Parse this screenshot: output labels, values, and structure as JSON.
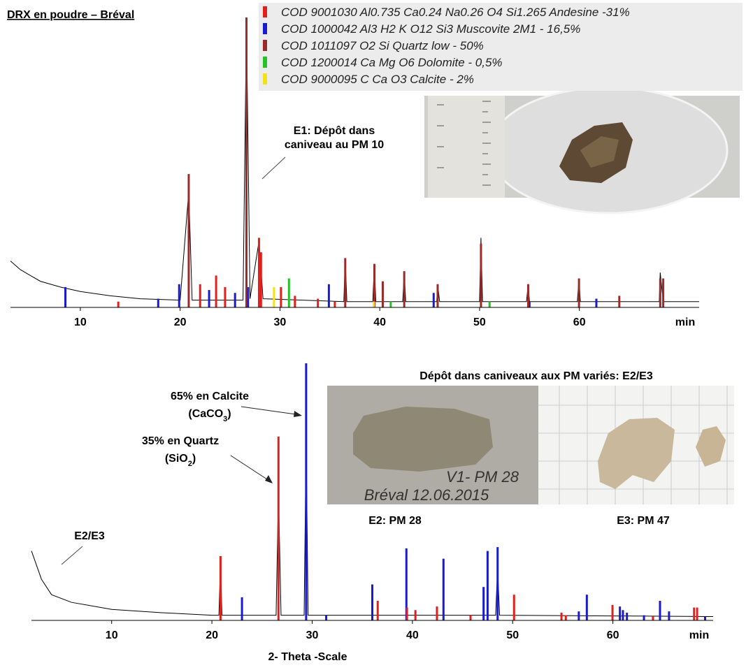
{
  "chart_data": [
    {
      "type": "stick",
      "title": "DRX en poudre – Bréval",
      "x_unit": "min",
      "xlim": [
        3,
        72
      ],
      "xticks": [
        10,
        20,
        30,
        40,
        50,
        60
      ],
      "ylim": [
        0,
        100
      ],
      "legend": "upper right",
      "annotation": [
        "E1: Dépôt dans",
        "caniveau au PM 10"
      ],
      "trace": {
        "color": "#000000",
        "x": [
          3,
          4,
          5,
          6,
          8,
          10,
          13,
          16,
          20,
          20.86,
          21.2,
          26.3,
          26.64,
          27,
          27.9,
          28.3,
          36.4,
          36.54,
          36.7,
          39.3,
          39.46,
          39.6,
          42.3,
          42.45,
          42.6,
          45.7,
          45.8,
          46,
          50,
          50.14,
          50.3,
          54.7,
          54.87,
          55,
          59.8,
          59.96,
          60.1,
          68,
          68.1,
          68.4,
          72
        ],
        "values": [
          16,
          13,
          11,
          9,
          7,
          5.5,
          4,
          3,
          2.5,
          40,
          2.5,
          2.5,
          98,
          3,
          23,
          3,
          2,
          17,
          2,
          2,
          15,
          2,
          2,
          12,
          2,
          2,
          8,
          2,
          2,
          24,
          2,
          2,
          8,
          2,
          2,
          10,
          2,
          2,
          12,
          2,
          2
        ]
      },
      "series": [
        {
          "name": "COD 9001030 Al0.735 Ca0.24 Na0.26 O4 Si1.265 Andesine -31%",
          "color": "#e0201c",
          "x": [
            13.8,
            22,
            23.6,
            24.5,
            27.9,
            28.1,
            30.1,
            31.5,
            33.8,
            35.5
          ],
          "values": [
            2,
            8,
            11,
            7,
            24,
            19,
            7,
            4,
            3,
            2
          ]
        },
        {
          "name": "COD 1000042 Al3 H2 K O12 Si3 Muscovite 2M1 - 16,5%",
          "color": "#1a1ad0",
          "x": [
            8.5,
            17.8,
            19.9,
            22.9,
            25.5,
            26.8,
            34.9,
            45.4,
            55,
            61.7
          ],
          "values": [
            7,
            3,
            8,
            6,
            5,
            7,
            8,
            5,
            2,
            3
          ]
        },
        {
          "name": "COD 1011097 O2 Si Quartz low  - 50%",
          "color": "#9b2a2a",
          "x": [
            20.86,
            26.64,
            36.54,
            39.46,
            40.3,
            42.45,
            45.8,
            50.14,
            54.87,
            59.96,
            64,
            68.1,
            68.4
          ],
          "values": [
            46,
            100,
            17,
            15,
            9,
            12.5,
            8,
            22,
            8,
            10,
            4,
            10,
            10
          ]
        },
        {
          "name": "COD 1200014 Ca Mg O6 Dolomite   - 0,5%",
          "color": "#22c322",
          "x": [
            30.9,
            41.1,
            51
          ],
          "values": [
            10,
            2,
            2
          ]
        },
        {
          "name": "COD 9000095 C Ca O3 Calcite - 2%",
          "color": "#f2e21a",
          "x": [
            29.4,
            39.4
          ],
          "values": [
            7,
            2
          ]
        }
      ]
    },
    {
      "type": "stick",
      "x_label": "2- Theta -Scale",
      "x_unit": "min",
      "xlim": [
        2,
        70
      ],
      "xticks": [
        10,
        20,
        30,
        40,
        50,
        60
      ],
      "ylim": [
        0,
        100
      ],
      "trace_label": "E2/E3",
      "calcite_label": {
        "line": "65% en Calcite",
        "formula": [
          "(CaCO",
          "3",
          ")"
        ]
      },
      "quartz_label": {
        "line": "35% en Quartz",
        "formula": [
          "(SiO",
          "2",
          ")"
        ]
      },
      "photo_title": "Dépôt dans caniveaux aux PM variés: E2/E3",
      "photo_captions": [
        "E2: PM 28",
        "E3: PM 47"
      ],
      "photo_text": [
        "V1- PM 28",
        "Bréval 12.06.2015"
      ],
      "trace": {
        "color": "#000000",
        "x": [
          2,
          3,
          4,
          6,
          10,
          15,
          20,
          20.7,
          20.86,
          21,
          26.4,
          26.64,
          26.9,
          29.2,
          29.4,
          29.6,
          48.3,
          48.5,
          48.7,
          70
        ],
        "values": [
          27,
          16,
          10,
          7,
          4.3,
          3,
          2,
          2,
          22,
          2,
          2,
          50,
          2,
          2,
          70,
          2,
          2,
          20,
          2,
          1.5
        ]
      },
      "series": [
        {
          "color": "#1a1ad0",
          "x": [
            23,
            29.4,
            31.4,
            36,
            39.4,
            43.1,
            47.1,
            47.5,
            48.5,
            56.6,
            57.4,
            60.7,
            61,
            61.4,
            63.1,
            64.7,
            65.6,
            69.2
          ],
          "values": [
            9,
            100,
            2,
            14,
            28,
            24,
            13,
            27,
            28.5,
            3.5,
            10,
            5.4,
            4,
            3,
            2,
            7.6,
            3.5,
            1.5
          ]
        },
        {
          "color": "#e0201c",
          "x": [
            20.86,
            26.64,
            36.54,
            39.46,
            40.3,
            42.45,
            45.8,
            50.14,
            54.87,
            55.3,
            59.96,
            64,
            68.1,
            68.4
          ],
          "values": [
            25,
            71.5,
            7.6,
            5,
            4,
            5.4,
            2,
            10,
            3,
            2,
            6,
            1.6,
            5,
            5
          ]
        }
      ]
    }
  ]
}
